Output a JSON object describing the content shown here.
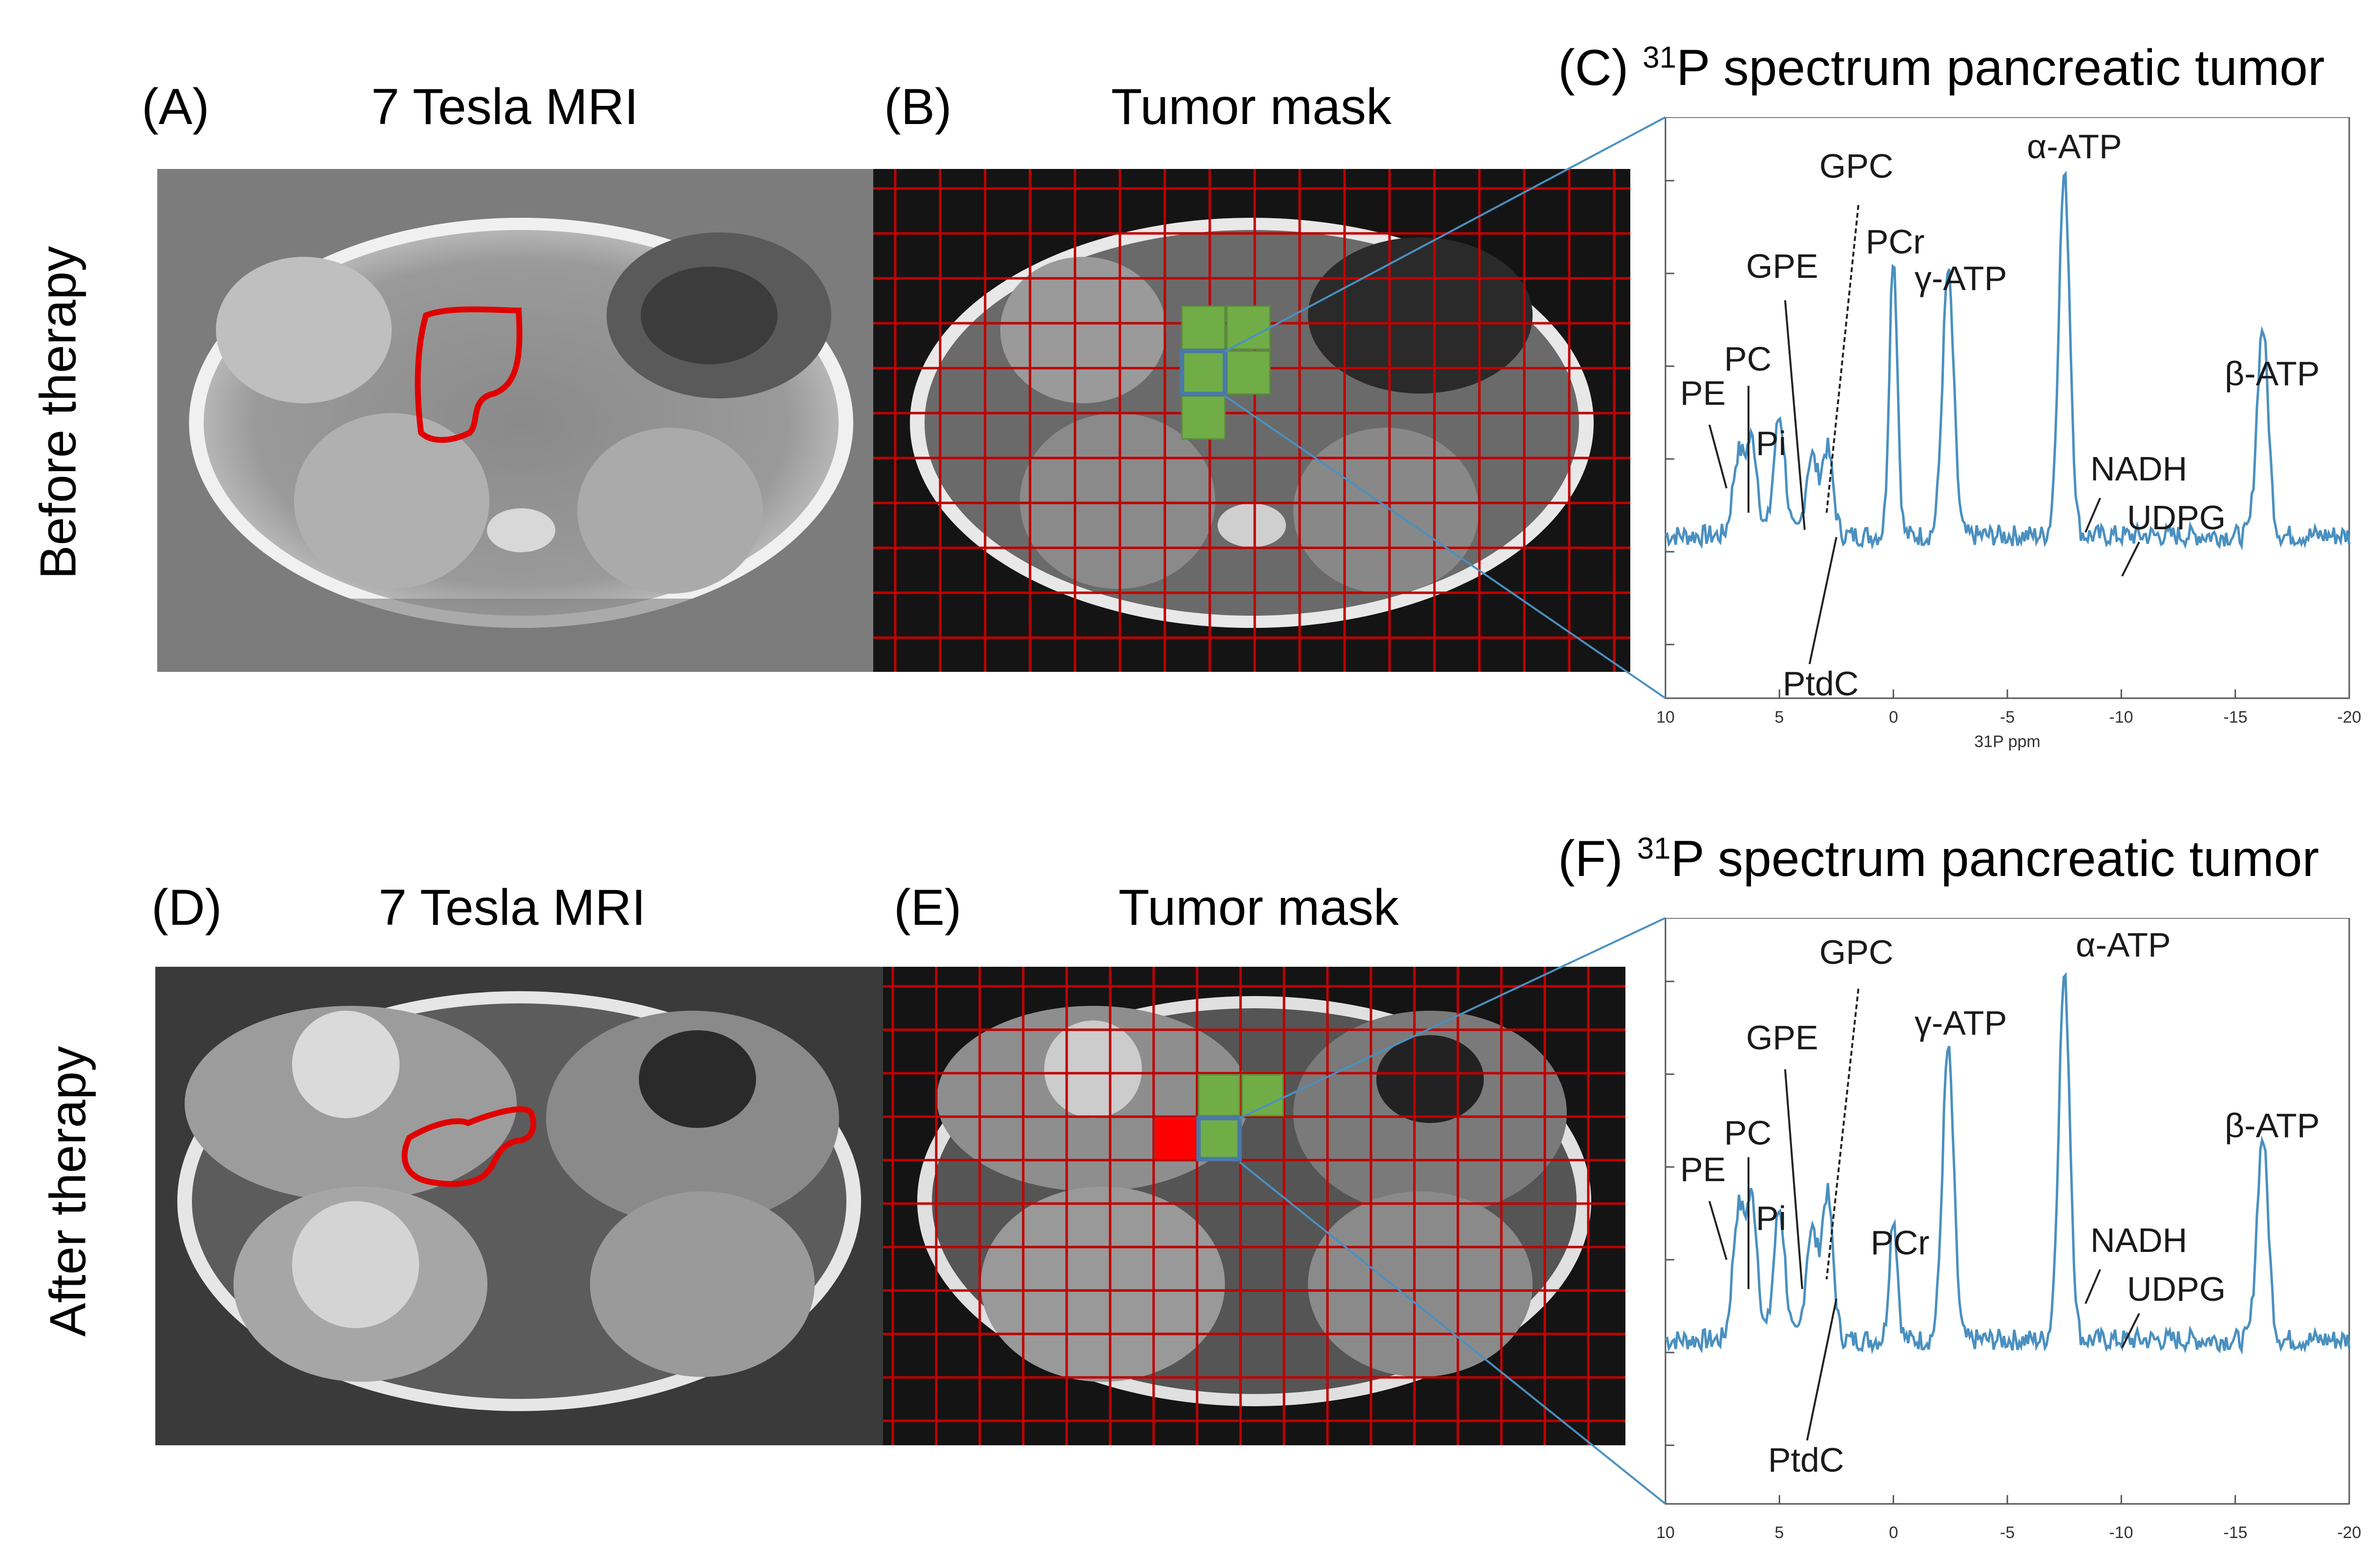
{
  "rows": [
    {
      "row_label": "Before therapy",
      "mri": {
        "panel": "(A)",
        "title": "7 Tesla MRI"
      },
      "mask": {
        "panel": "(B)",
        "title": "Tumor mask"
      },
      "spectrum": {
        "panel": "(C)",
        "title_sup": "31",
        "title_rest": "P spectrum pancreatic tumor"
      }
    },
    {
      "row_label": "After therapy",
      "mri": {
        "panel": "(D)",
        "title": "7 Tesla MRI"
      },
      "mask": {
        "panel": "(E)",
        "title": "Tumor mask"
      },
      "spectrum": {
        "panel": "(F)",
        "title_sup": "31",
        "title_rest": "P spectrum pancreatic tumor"
      }
    }
  ],
  "peak_labels": {
    "PE": "PE",
    "PC": "PC",
    "Pi": "Pi",
    "GPE": "GPE",
    "GPC": "GPC",
    "PtdC": "PtdC",
    "PCr": "PCr",
    "gATP": "γ-ATP",
    "aATP": "α-ATP",
    "bATP": "β-ATP",
    "NADH": "NADH",
    "UDPG": "UDPG"
  },
  "colors": {
    "mask_grid": "#c00000",
    "voxel_tumor": "#70ad47",
    "voxel_excluded": "#ff0000",
    "spectrum_line": "#4a90c0",
    "contour": "#e00000"
  },
  "chart_data": [
    {
      "type": "line",
      "title": "(C) 31P spectrum pancreatic tumor",
      "xlabel": "31P ppm",
      "ylabel": "",
      "xlim": [
        10,
        -20
      ],
      "xticks": [
        "10",
        "5",
        "0",
        "-5",
        "-10",
        "-15",
        "-20"
      ],
      "peaks_ppm": {
        "PE": 6.8,
        "PC": 6.2,
        "Pi": 5.0,
        "GPE": 3.6,
        "GPC": 2.9,
        "PCr": 0.0,
        "gamma-ATP": -2.4,
        "alpha-ATP": -7.5,
        "beta-ATP": -16.2
      },
      "relative_heights": {
        "PE": 0.22,
        "PC": 0.26,
        "Pi": 0.33,
        "GPE": 0.22,
        "GPC": 0.24,
        "PCr": 0.78,
        "gamma-ATP": 0.73,
        "alpha-ATP": 1.0,
        "beta-ATP": 0.58
      }
    },
    {
      "type": "line",
      "title": "(F) 31P spectrum pancreatic tumor",
      "xlabel": "",
      "ylabel": "",
      "xlim": [
        10,
        -20
      ],
      "xticks": [
        "10",
        "5",
        "0",
        "-5",
        "-10",
        "-15",
        "-20"
      ],
      "peaks_ppm": {
        "PE": 6.8,
        "PC": 6.2,
        "Pi": 5.0,
        "GPE": 3.6,
        "GPC": 2.9,
        "PCr": 0.0,
        "gamma-ATP": -2.4,
        "alpha-ATP": -7.5,
        "beta-ATP": -16.2
      },
      "relative_heights": {
        "PE": 0.35,
        "PC": 0.38,
        "Pi": 0.36,
        "GPE": 0.3,
        "GPC": 0.4,
        "PCr": 0.34,
        "gamma-ATP": 0.8,
        "alpha-ATP": 1.0,
        "beta-ATP": 0.56
      }
    }
  ]
}
